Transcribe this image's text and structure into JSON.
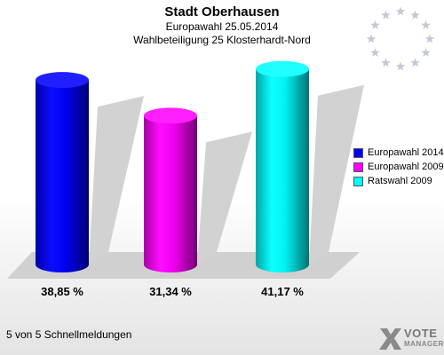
{
  "header": {
    "title": "Stadt Oberhausen",
    "subtitle1": "Europawahl 25.05.2014",
    "subtitle2": "Wahlbeteiligung 25 Klosterhardt-Nord"
  },
  "chart_data": {
    "type": "bar",
    "style": "3d-cylinder",
    "title": "Stadt Oberhausen",
    "subtitle": [
      "Europawahl 25.05.2014",
      "Wahlbeteiligung 25 Klosterhardt-Nord"
    ],
    "xlabel": "",
    "ylabel": "",
    "ylim": [
      0,
      45
    ],
    "grid": false,
    "legend_position": "right",
    "series": [
      {
        "name": "Europawahl 2014",
        "value": 38.85,
        "label": "38,85 %",
        "color": "#0000ff"
      },
      {
        "name": "Europawahl 2009",
        "value": 31.34,
        "label": "31,34 %",
        "color": "#ff00ff"
      },
      {
        "name": "Ratswahl 2009",
        "value": 41.17,
        "label": "41,17 %",
        "color": "#00ffff"
      }
    ]
  },
  "footer": {
    "text": "5 von 5 Schnellmeldungen"
  },
  "logo": {
    "line1": "VOTE",
    "line2": "MANAGER",
    "icon": "vote-manager-x-icon"
  },
  "decor": {
    "icon": "eu-stars-icon"
  }
}
